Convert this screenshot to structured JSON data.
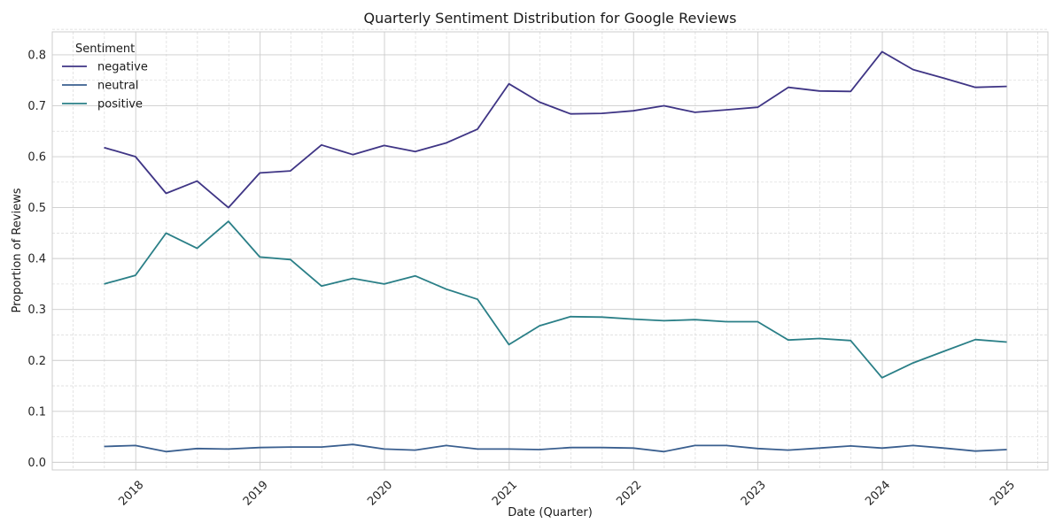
{
  "chart_data": {
    "type": "line",
    "title": "Quarterly Sentiment Distribution for Google Reviews",
    "xlabel": "Date (Quarter)",
    "ylabel": "Proportion of Reviews",
    "x": [
      "2017-09-30",
      "2017-12-31",
      "2018-03-31",
      "2018-06-30",
      "2018-09-30",
      "2018-12-31",
      "2019-03-31",
      "2019-06-30",
      "2019-09-30",
      "2019-12-31",
      "2020-03-31",
      "2020-06-30",
      "2020-09-30",
      "2020-12-31",
      "2021-03-31",
      "2021-06-30",
      "2021-09-30",
      "2021-12-31",
      "2022-03-31",
      "2022-06-30",
      "2022-09-30",
      "2022-12-31",
      "2023-03-31",
      "2023-06-30",
      "2023-09-30",
      "2023-12-31",
      "2024-03-31",
      "2024-06-30",
      "2024-09-30",
      "2024-12-31"
    ],
    "x_ticks": [
      "2018",
      "2019",
      "2020",
      "2021",
      "2022",
      "2023",
      "2024",
      "2025"
    ],
    "xlim": [
      "2017-05-01",
      "2025-05-01"
    ],
    "ylim": [
      -0.015,
      0.845
    ],
    "y_ticks": [
      "0.0",
      "0.1",
      "0.2",
      "0.3",
      "0.4",
      "0.5",
      "0.6",
      "0.7",
      "0.8"
    ],
    "grid": true,
    "legend": {
      "title": "Sentiment",
      "placement": "top-left"
    },
    "series": [
      {
        "name": "negative",
        "color": "#3f3585",
        "values": [
          0.618,
          0.6,
          0.528,
          0.552,
          0.5,
          0.568,
          0.572,
          0.623,
          0.604,
          0.622,
          0.61,
          0.627,
          0.654,
          0.743,
          0.707,
          0.684,
          0.685,
          0.69,
          0.7,
          0.687,
          0.692,
          0.697,
          0.736,
          0.729,
          0.728,
          0.806,
          0.771,
          0.754,
          0.736,
          0.738
        ]
      },
      {
        "name": "neutral",
        "color": "#3a5f8f",
        "values": [
          0.031,
          0.033,
          0.021,
          0.027,
          0.026,
          0.029,
          0.03,
          0.03,
          0.035,
          0.026,
          0.024,
          0.033,
          0.026,
          0.026,
          0.025,
          0.029,
          0.029,
          0.028,
          0.021,
          0.033,
          0.033,
          0.027,
          0.024,
          0.028,
          0.032,
          0.028,
          0.033,
          0.028,
          0.022,
          0.025
        ]
      },
      {
        "name": "positive",
        "color": "#2a7f87",
        "values": [
          0.35,
          0.367,
          0.45,
          0.42,
          0.473,
          0.403,
          0.398,
          0.346,
          0.361,
          0.35,
          0.366,
          0.34,
          0.32,
          0.231,
          0.268,
          0.286,
          0.285,
          0.281,
          0.278,
          0.28,
          0.276,
          0.276,
          0.24,
          0.243,
          0.239,
          0.166,
          0.195,
          0.218,
          0.241,
          0.236
        ]
      }
    ]
  }
}
